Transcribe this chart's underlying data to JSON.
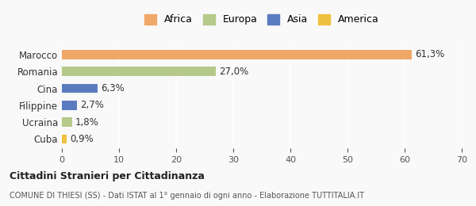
{
  "categories": [
    "Cuba",
    "Ucraina",
    "Filippine",
    "Cina",
    "Romania",
    "Marocco"
  ],
  "values": [
    0.9,
    1.8,
    2.7,
    6.3,
    27.0,
    61.3
  ],
  "labels": [
    "0,9%",
    "1,8%",
    "2,7%",
    "6,3%",
    "27,0%",
    "61,3%"
  ],
  "colors": [
    "#f0c040",
    "#b5c98a",
    "#5a7bbf",
    "#5a7bbf",
    "#b5c98a",
    "#f0a868"
  ],
  "legend": [
    {
      "label": "Africa",
      "color": "#f0a868"
    },
    {
      "label": "Europa",
      "color": "#b5c98a"
    },
    {
      "label": "Asia",
      "color": "#5a7bbf"
    },
    {
      "label": "America",
      "color": "#f0c040"
    }
  ],
  "xlim": [
    0,
    70
  ],
  "xticks": [
    0,
    10,
    20,
    30,
    40,
    50,
    60,
    70
  ],
  "title_bold": "Cittadini Stranieri per Cittadinanza",
  "subtitle": "COMUNE DI THIESI (SS) - Dati ISTAT al 1° gennaio di ogni anno - Elaborazione TUTTITALIA.IT",
  "background_color": "#f9f9f9",
  "grid_color": "#ffffff",
  "bar_height": 0.55
}
